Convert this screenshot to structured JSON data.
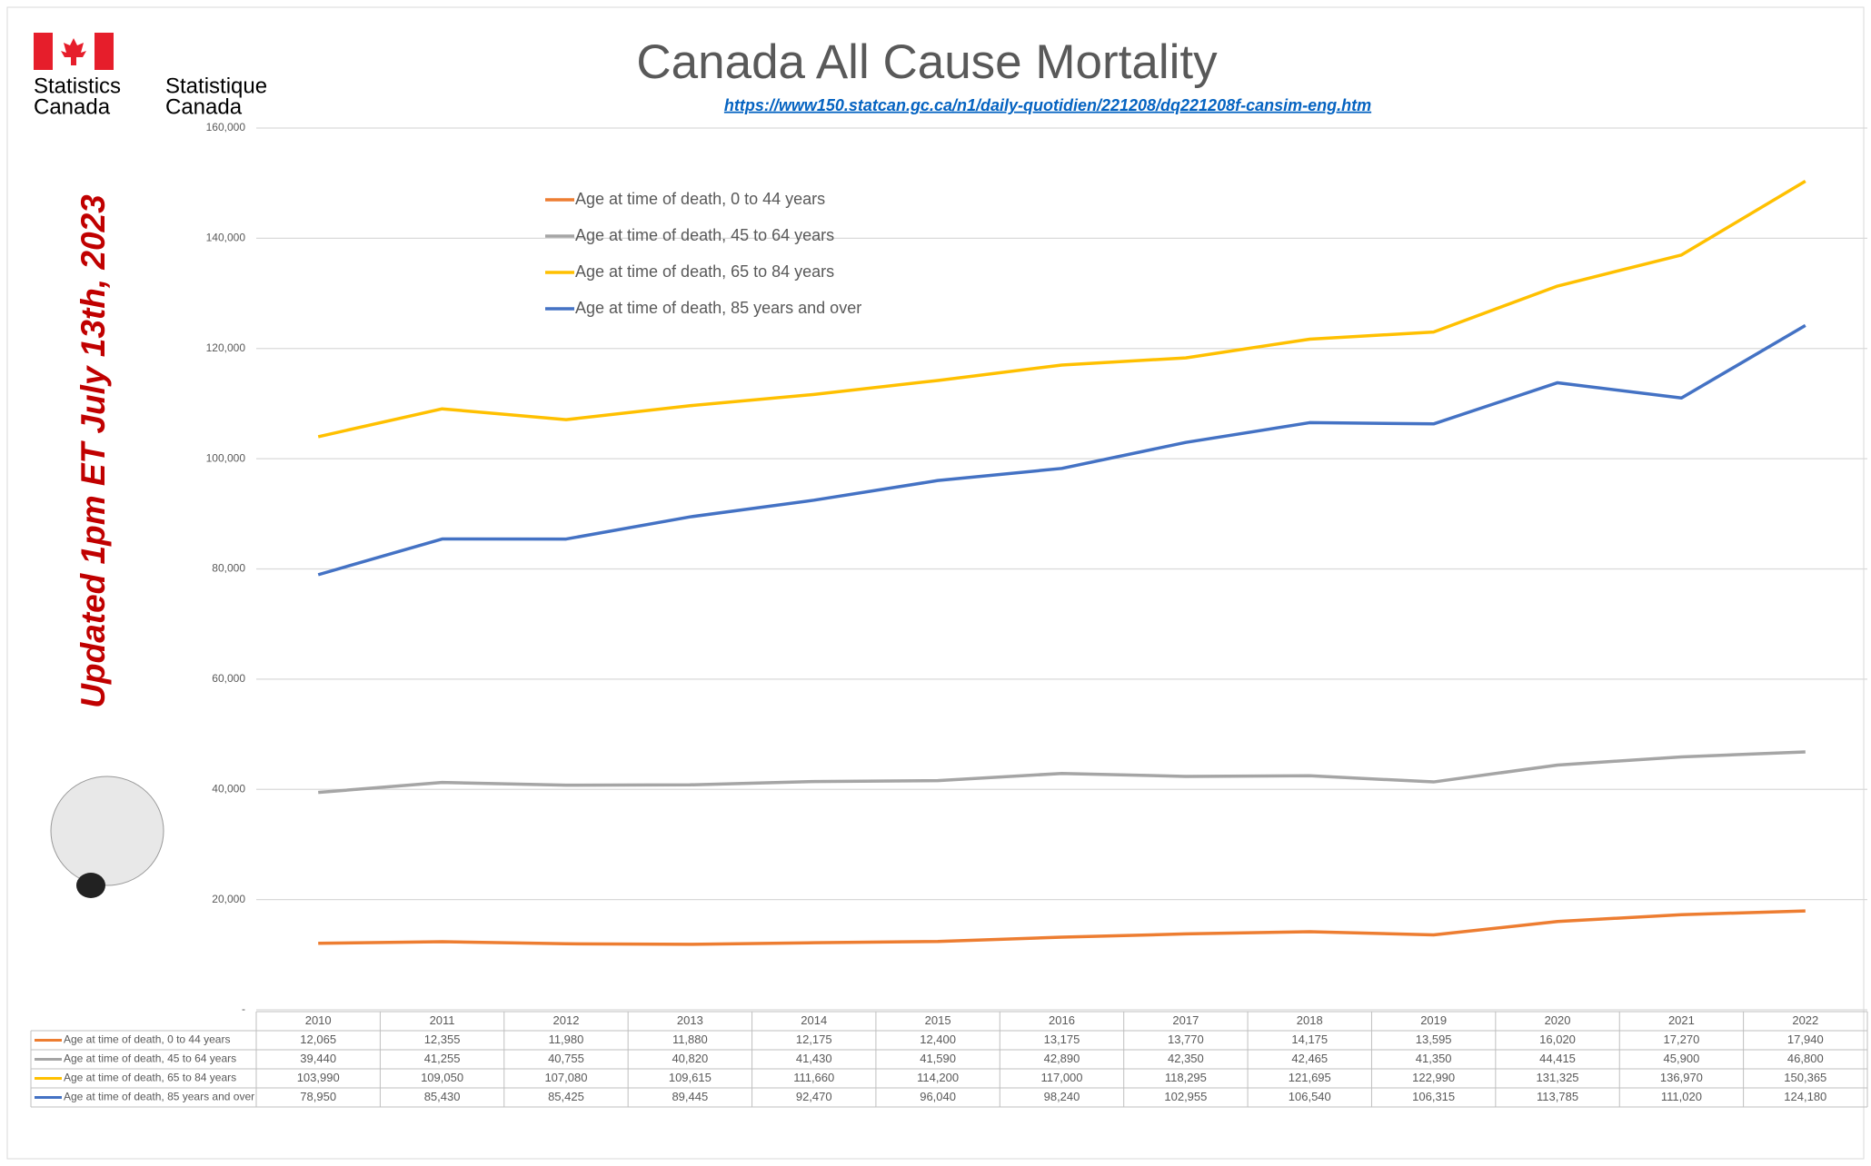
{
  "header": {
    "org_en": [
      "Statistics",
      "Canada"
    ],
    "org_fr": [
      "Statistique",
      "Canada"
    ]
  },
  "side_note": "Updated 1pm ET July 13th, 2023",
  "chart_data": {
    "type": "line",
    "title": "Canada All Cause Mortality",
    "subtitle": "https://www150.statcan.gc.ca/n1/daily-quotidien/221208/dq221208f-cansim-eng.htm",
    "categories": [
      "2010",
      "2011",
      "2012",
      "2013",
      "2014",
      "2015",
      "2016",
      "2017",
      "2018",
      "2019",
      "2020",
      "2021",
      "2022"
    ],
    "ylim": [
      0,
      160000
    ],
    "yticks": [
      {
        "value": 0,
        "label": "-"
      },
      {
        "value": 20000,
        "label": "20,000"
      },
      {
        "value": 40000,
        "label": "40,000"
      },
      {
        "value": 60000,
        "label": "60,000"
      },
      {
        "value": 80000,
        "label": "80,000"
      },
      {
        "value": 100000,
        "label": "100,000"
      },
      {
        "value": 120000,
        "label": "120,000"
      },
      {
        "value": 140000,
        "label": "140,000"
      },
      {
        "value": 160000,
        "label": "160,000"
      }
    ],
    "grid": true,
    "legend": "top-left",
    "series": [
      {
        "name": "Age at time of death, 0 to 44 years",
        "color": "#ed7d31",
        "values": [
          12065,
          12355,
          11980,
          11880,
          12175,
          12400,
          13175,
          13770,
          14175,
          13595,
          16020,
          17270,
          17940
        ],
        "value_labels": [
          "12,065",
          "12,355",
          "11,980",
          "11,880",
          "12,175",
          "12,400",
          "13,175",
          "13,770",
          "14,175",
          "13,595",
          "16,020",
          "17,270",
          "17,940"
        ]
      },
      {
        "name": "Age at time of death, 45 to 64 years",
        "color": "#a5a5a5",
        "values": [
          39440,
          41255,
          40755,
          40820,
          41430,
          41590,
          42890,
          42350,
          42465,
          41350,
          44415,
          45900,
          46800
        ],
        "value_labels": [
          "39,440",
          "41,255",
          "40,755",
          "40,820",
          "41,430",
          "41,590",
          "42,890",
          "42,350",
          "42,465",
          "41,350",
          "44,415",
          "45,900",
          "46,800"
        ]
      },
      {
        "name": "Age at time of death, 65 to 84 years",
        "color": "#ffc000",
        "values": [
          103990,
          109050,
          107080,
          109615,
          111660,
          114200,
          117000,
          118295,
          121695,
          122990,
          131325,
          136970,
          150365
        ],
        "value_labels": [
          "103,990",
          "109,050",
          "107,080",
          "109,615",
          "111,660",
          "114,200",
          "117,000",
          "118,295",
          "121,695",
          "122,990",
          "131,325",
          "136,970",
          "150,365"
        ]
      },
      {
        "name": "Age at time of death, 85 years and over",
        "color": "#4472c4",
        "values": [
          78950,
          85430,
          85425,
          89445,
          92470,
          96040,
          98240,
          102955,
          106540,
          106315,
          113785,
          111020,
          124180
        ],
        "value_labels": [
          "78,950",
          "85,430",
          "85,425",
          "89,445",
          "92,470",
          "96,040",
          "98,240",
          "102,955",
          "106,540",
          "106,315",
          "113,785",
          "111,020",
          "124,180"
        ]
      }
    ]
  }
}
